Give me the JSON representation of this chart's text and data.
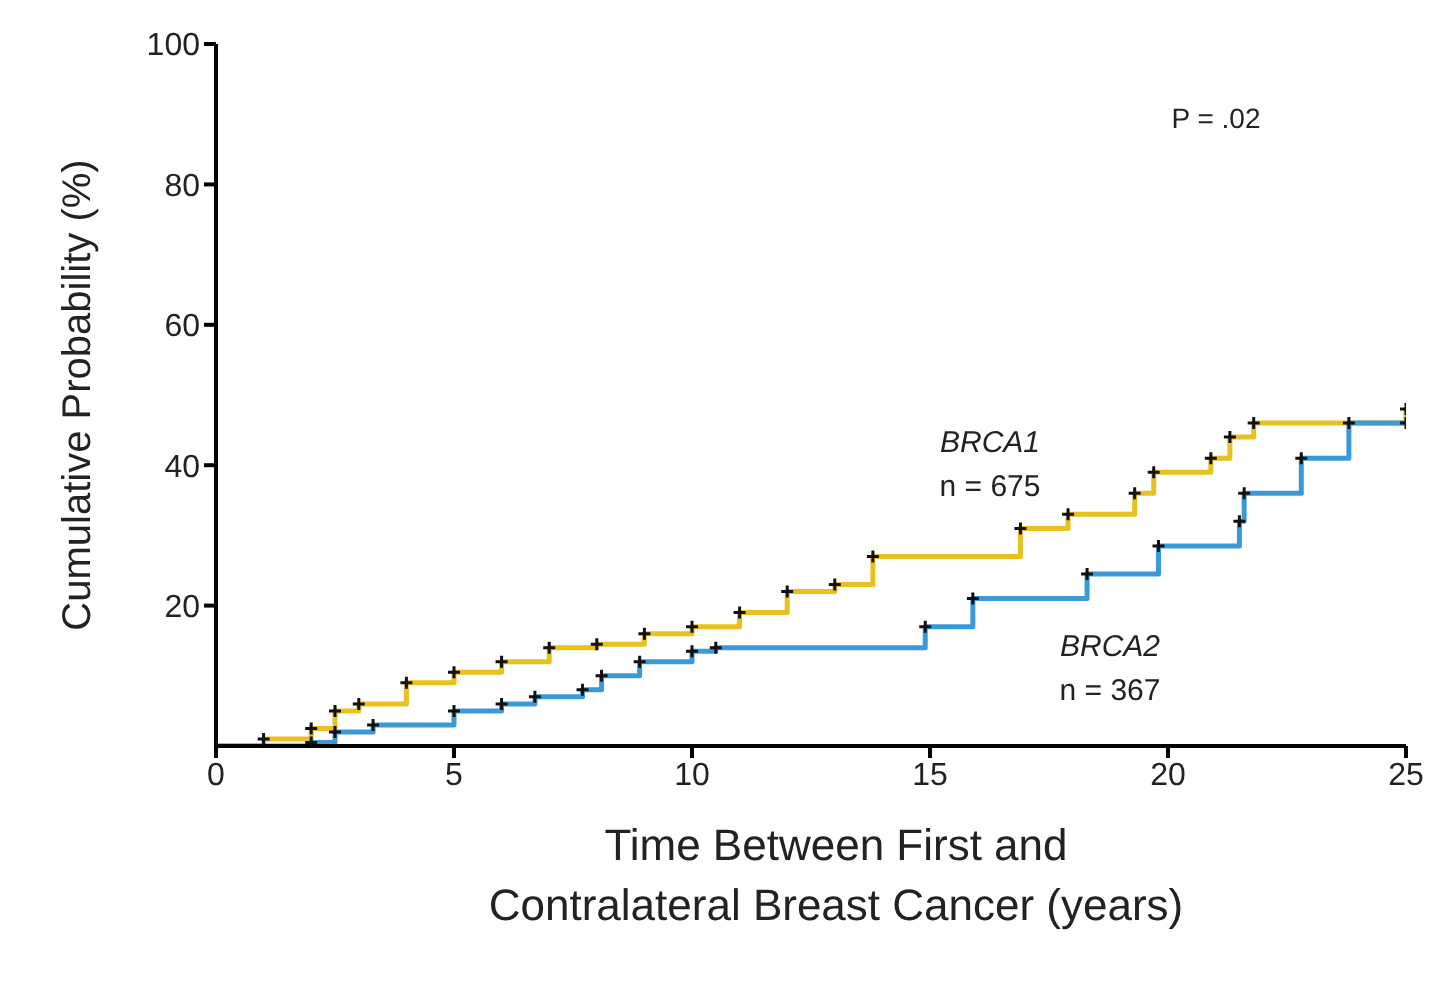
{
  "chart_data": {
    "type": "step",
    "xlabel": "Time Between First and Contralateral Breast Cancer (years)",
    "ylabel": "Cumulative Probability (%)",
    "xlim": [
      0,
      25
    ],
    "xticks": [
      0,
      5,
      10,
      15,
      20,
      25
    ],
    "ylim": [
      0,
      100
    ],
    "yticks": [
      20,
      40,
      60,
      80,
      100
    ],
    "grid": false,
    "legend": false,
    "marker": "cross",
    "line_style": "solid",
    "annotations": [
      "n = 675",
      "n = 367",
      "P = .02"
    ],
    "series": [
      {
        "name": "BRCA1",
        "color": "#e8c020",
        "x": [
          0,
          1,
          2,
          2.5,
          3,
          4,
          5,
          6,
          7,
          8,
          9,
          10,
          11,
          12,
          13,
          13.8,
          16.9,
          17.9,
          19.3,
          19.7,
          20.9,
          21.3,
          21.8,
          25
        ],
        "values": [
          0,
          1,
          2.5,
          5,
          6,
          9,
          10.5,
          12,
          14,
          14.5,
          16,
          17,
          19,
          22,
          23,
          27,
          31,
          33,
          36,
          39,
          41,
          44,
          46,
          48
        ]
      },
      {
        "name": "BRCA2",
        "color": "#3a9ad9",
        "x": [
          0,
          2,
          2.5,
          3.3,
          5,
          6,
          6.7,
          7.7,
          8.1,
          8.9,
          10,
          10.5,
          14.9,
          15.9,
          18.3,
          19.8,
          21.5,
          21.6,
          22.8,
          23.8,
          25
        ],
        "values": [
          0,
          0.5,
          2,
          3,
          5,
          6,
          7,
          8,
          10,
          12,
          13.5,
          14,
          17,
          21,
          24.5,
          28.5,
          32,
          36,
          41,
          46,
          46
        ]
      }
    ]
  }
}
